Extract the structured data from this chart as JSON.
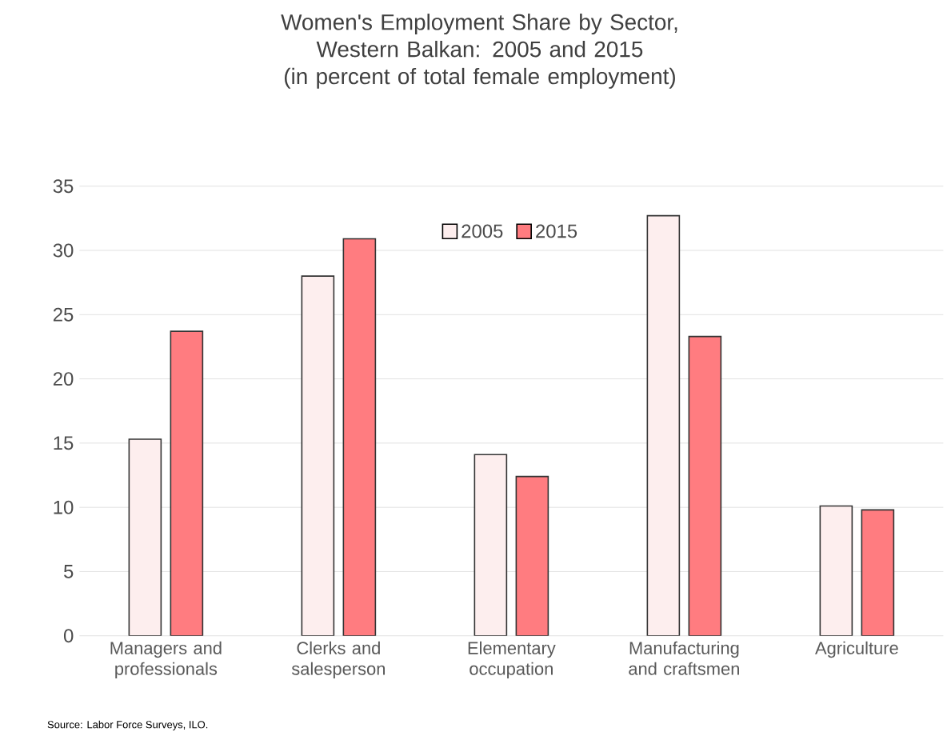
{
  "chart_data": {
    "type": "bar",
    "title": "Women's Employment Share by Sector, Western Balkan: 2005 and 2015",
    "subtitle": "(in percent of total female employment)",
    "categories": [
      "Managers and professionals",
      "Clerks and salesperson",
      "Elementary occupation",
      "Manufacturing and craftsmen",
      "Agriculture"
    ],
    "series": [
      {
        "name": "2005",
        "color": "#fdeeee",
        "values": [
          15.3,
          28.0,
          14.1,
          32.7,
          10.1
        ]
      },
      {
        "name": "2015",
        "color": "#ff7c80",
        "values": [
          23.7,
          30.9,
          12.4,
          23.3,
          9.8
        ]
      }
    ],
    "ylim": [
      0,
      35
    ],
    "yticks": [
      0,
      5,
      10,
      15,
      20,
      25,
      30,
      35
    ],
    "grid": "y",
    "legend": "top",
    "annotations": [
      "Source: Labor Force Surveys, ILO."
    ]
  }
}
